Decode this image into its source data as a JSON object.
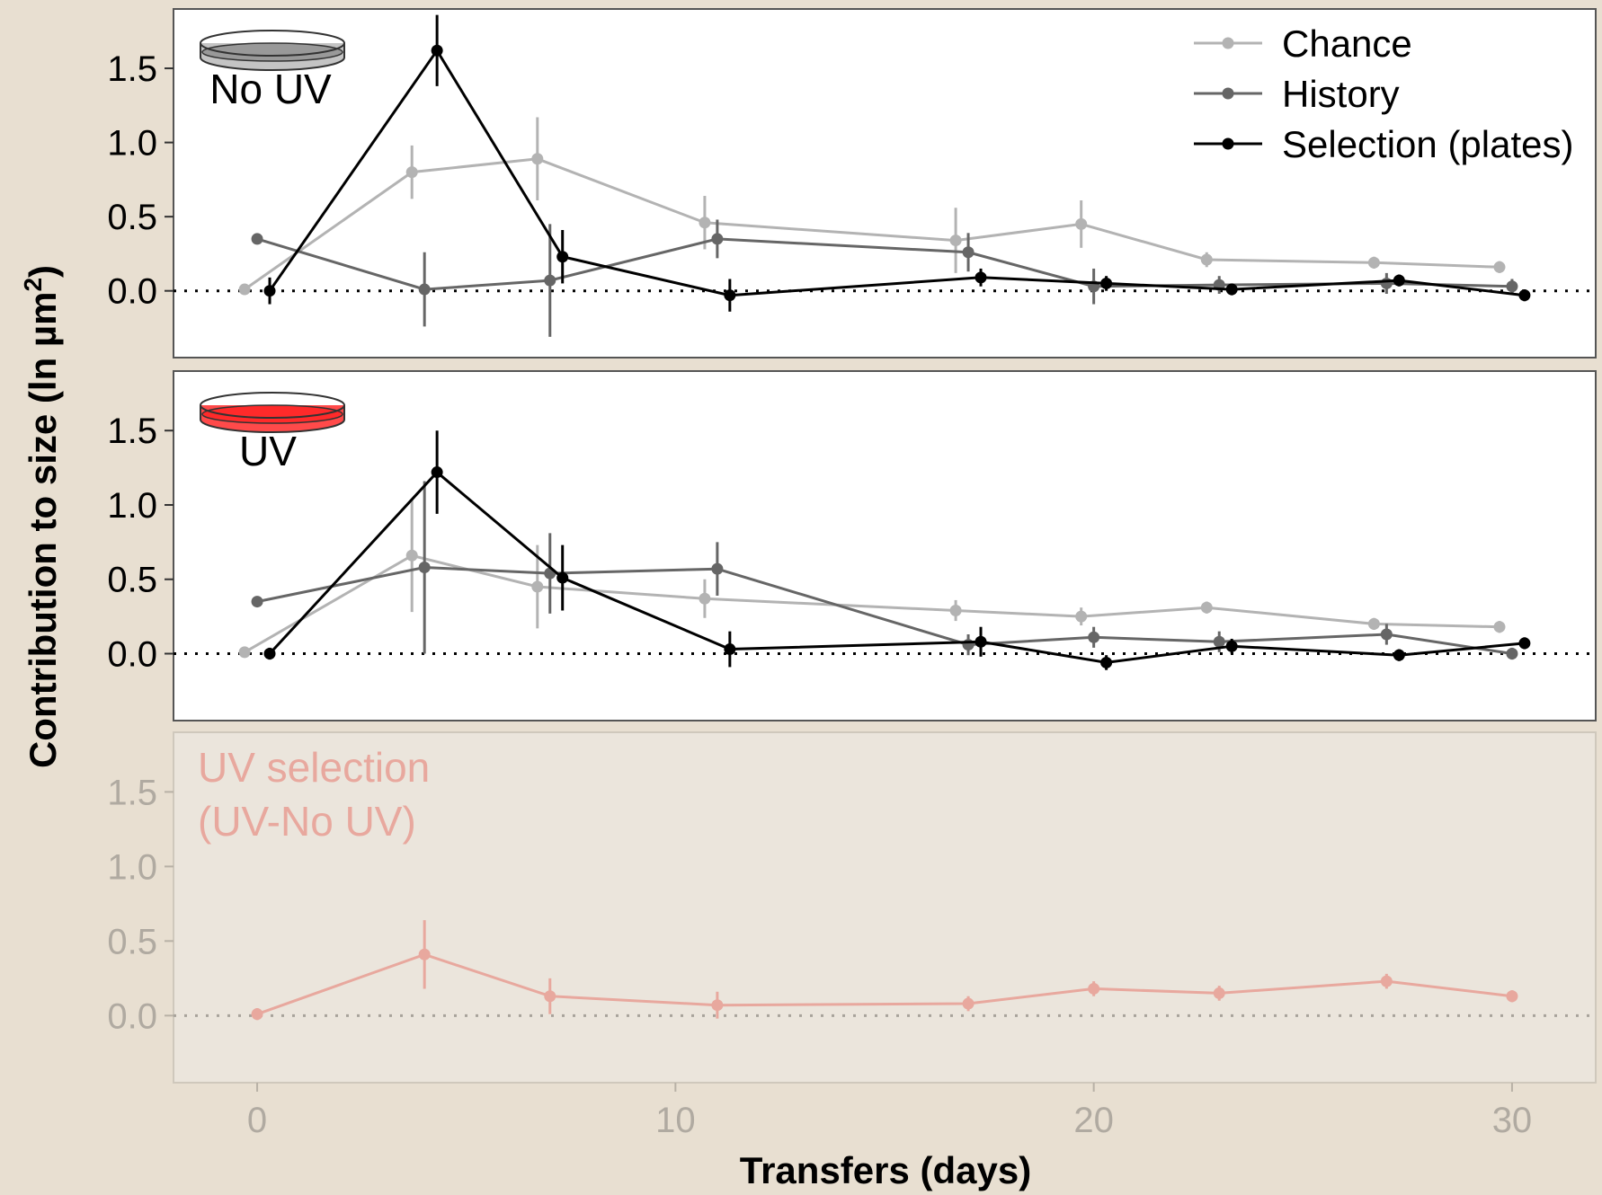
{
  "chart_data": {
    "type": "line",
    "xlabel": "Transfers (days)",
    "ylabel_main": "Contribution to size (ln µm",
    "ylabel_sup": "2",
    "ylabel_close": ")",
    "xlim": [
      -2,
      32
    ],
    "ylim": [
      -0.45,
      1.9
    ],
    "x_ticks": [
      "0",
      "10",
      "20",
      "30"
    ],
    "y_ticks": [
      "0.0",
      "0.5",
      "1.0",
      "1.5"
    ],
    "reference_line": 0,
    "colors": {
      "chance": "#b3b3b3",
      "history": "#666666",
      "selection": "#000000",
      "uv_selection": "#e8a89e"
    },
    "legend": [
      "Chance",
      "History",
      "Selection (plates)"
    ],
    "legend_position": "top-right",
    "panels": [
      {
        "label": "No UV",
        "icon": "petri-dish-gray-icon",
        "series": [
          {
            "name": "Chance",
            "color": "#b3b3b3",
            "x": [
              -0.3,
              3.7,
              6.7,
              10.7,
              16.7,
              19.7,
              22.7,
              26.7,
              29.7
            ],
            "y": [
              0.01,
              0.8,
              0.89,
              0.46,
              0.34,
              0.45,
              0.21,
              0.19,
              0.16
            ],
            "err": [
              0.02,
              0.18,
              0.28,
              0.18,
              0.22,
              0.16,
              0.05,
              0.04,
              0.04
            ]
          },
          {
            "name": "History",
            "color": "#666666",
            "x": [
              0,
              4,
              7,
              11,
              17,
              20,
              23,
              27,
              30
            ],
            "y": [
              0.35,
              0.01,
              0.07,
              0.35,
              0.26,
              0.03,
              0.04,
              0.05,
              0.03
            ],
            "err": [
              0.02,
              0.25,
              0.38,
              0.13,
              0.13,
              0.12,
              0.06,
              0.07,
              0.05
            ]
          },
          {
            "name": "Selection (plates)",
            "color": "#000000",
            "x": [
              0.3,
              4.3,
              7.3,
              11.3,
              17.3,
              20.3,
              23.3,
              27.3,
              30.3
            ],
            "y": [
              0.0,
              1.62,
              0.23,
              -0.03,
              0.09,
              0.05,
              0.01,
              0.07,
              -0.03
            ],
            "err": [
              0.09,
              0.24,
              0.18,
              0.11,
              0.06,
              0.05,
              0.04,
              0.04,
              0.04
            ]
          }
        ]
      },
      {
        "label": "UV",
        "icon": "petri-dish-red-icon",
        "series": [
          {
            "name": "Chance",
            "color": "#b3b3b3",
            "x": [
              -0.3,
              3.7,
              6.7,
              10.7,
              16.7,
              19.7,
              22.7,
              26.7,
              29.7
            ],
            "y": [
              0.01,
              0.66,
              0.45,
              0.37,
              0.29,
              0.25,
              0.31,
              0.2,
              0.18
            ],
            "err": [
              0.02,
              0.38,
              0.28,
              0.13,
              0.07,
              0.06,
              0.04,
              0.04,
              0.04
            ]
          },
          {
            "name": "History",
            "color": "#666666",
            "x": [
              0,
              4,
              7,
              11,
              17,
              20,
              23,
              27,
              30
            ],
            "y": [
              0.35,
              0.58,
              0.54,
              0.57,
              0.06,
              0.11,
              0.08,
              0.13,
              0.0
            ],
            "err": [
              0.02,
              0.58,
              0.27,
              0.18,
              0.07,
              0.07,
              0.07,
              0.07,
              0.04
            ]
          },
          {
            "name": "Selection (plates)",
            "color": "#000000",
            "x": [
              0.3,
              4.3,
              7.3,
              11.3,
              17.3,
              20.3,
              23.3,
              27.3,
              30.3
            ],
            "y": [
              0.0,
              1.22,
              0.51,
              0.03,
              0.08,
              -0.06,
              0.05,
              -0.01,
              0.07
            ],
            "err": [
              0.04,
              0.28,
              0.22,
              0.12,
              0.1,
              0.05,
              0.05,
              0.04,
              0.04
            ]
          }
        ]
      },
      {
        "label": "UV selection\n(UV-No UV)",
        "series": [
          {
            "name": "UV selection",
            "color": "#e8a89e",
            "x": [
              0,
              4,
              7,
              11,
              17,
              20,
              23,
              27,
              30
            ],
            "y": [
              0.01,
              0.41,
              0.13,
              0.07,
              0.08,
              0.18,
              0.15,
              0.23,
              0.13
            ],
            "err": [
              0.04,
              0.23,
              0.12,
              0.09,
              0.05,
              0.05,
              0.05,
              0.05,
              0.04
            ]
          }
        ]
      }
    ]
  }
}
